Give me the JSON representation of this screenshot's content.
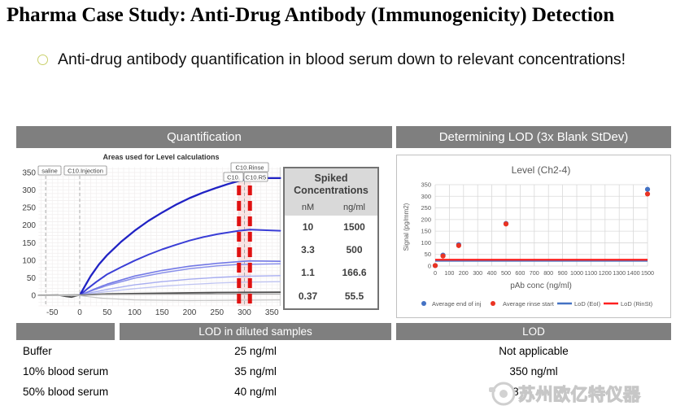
{
  "title": "Pharma Case Study: Anti-Drug Antibody (Immunogenicity) Detection",
  "bullet": {
    "text": "Anti-drug antibody quantification in blood serum down to relevant concentrations!"
  },
  "sections": {
    "quantification": "Quantification",
    "lod_determination": "Determining LOD (3x Blank StDev)",
    "lod_diluted": "LOD in diluted samples",
    "lod": "LOD"
  },
  "spiked_table": {
    "title": "Spiked Concentrations",
    "columns": [
      "nM",
      "ng/ml"
    ],
    "rows": [
      [
        "10",
        "1500"
      ],
      [
        "3.3",
        "500"
      ],
      [
        "1.1",
        "166.6"
      ],
      [
        "0.37",
        "55.5"
      ]
    ]
  },
  "lod_table": {
    "rows": [
      {
        "label": "Buffer",
        "diluted": "25 ng/ml",
        "lod": "Not applicable"
      },
      {
        "label": "10% blood serum",
        "diluted": "35 ng/ml",
        "lod": "350 ng/ml"
      },
      {
        "label": "50% blood serum",
        "diluted": "40 ng/ml",
        "lod": "80 ng/ml"
      }
    ]
  },
  "watermark": {
    "text": "苏州欧亿特仪器"
  },
  "chart_data": [
    {
      "type": "line",
      "title": "Areas used for Level calculations",
      "xlabel": "",
      "ylabel": "",
      "xlim": [
        -75,
        365
      ],
      "ylim": [
        -30,
        365
      ],
      "xticks": [
        -50,
        0,
        50,
        100,
        150,
        200,
        250,
        300,
        350
      ],
      "yticks": [
        0,
        50,
        100,
        150,
        200,
        250,
        300,
        350
      ],
      "annotations": [
        "saline",
        "C10.Injection",
        "C10.Rinse",
        "C10.",
        "C10.R5"
      ],
      "gray_dashed_x": [
        -62,
        0,
        300
      ],
      "red_dashed_x": [
        290,
        310
      ],
      "band_x": [
        288,
        312
      ],
      "series": [
        {
          "color": "#bfc4f2",
          "width": 1.3,
          "points": [
            [
              0,
              0
            ],
            [
              50,
              11
            ],
            [
              100,
              19
            ],
            [
              150,
              26
            ],
            [
              200,
              31
            ],
            [
              250,
              35
            ],
            [
              290,
              37
            ],
            [
              365,
              39
            ]
          ]
        },
        {
          "color": "#a7adf0",
          "width": 1.4,
          "points": [
            [
              0,
              0
            ],
            [
              25,
              9
            ],
            [
              50,
              17
            ],
            [
              100,
              30
            ],
            [
              150,
              39
            ],
            [
              200,
              46
            ],
            [
              250,
              51
            ],
            [
              290,
              54
            ],
            [
              365,
              56
            ]
          ]
        },
        {
          "color": "#8a90ea",
          "width": 1.5,
          "points": [
            [
              0,
              0
            ],
            [
              25,
              15
            ],
            [
              50,
              28
            ],
            [
              100,
              49
            ],
            [
              150,
              64
            ],
            [
              200,
              76
            ],
            [
              250,
              84
            ],
            [
              290,
              88
            ],
            [
              365,
              90
            ]
          ]
        },
        {
          "color": "#7379e6",
          "width": 1.6,
          "points": [
            [
              0,
              0
            ],
            [
              25,
              17
            ],
            [
              50,
              32
            ],
            [
              100,
              55
            ],
            [
              150,
              71
            ],
            [
              200,
              83
            ],
            [
              250,
              91
            ],
            [
              290,
              96
            ],
            [
              310,
              98
            ],
            [
              365,
              97
            ]
          ]
        },
        {
          "color": "#3a3ed6",
          "width": 2,
          "points": [
            [
              0,
              0
            ],
            [
              15,
              20
            ],
            [
              30,
              38
            ],
            [
              50,
              60
            ],
            [
              75,
              80
            ],
            [
              100,
              99
            ],
            [
              125,
              116
            ],
            [
              150,
              131
            ],
            [
              175,
              144
            ],
            [
              200,
              156
            ],
            [
              225,
              166
            ],
            [
              250,
              174
            ],
            [
              270,
              179
            ],
            [
              290,
              184
            ],
            [
              310,
              187
            ],
            [
              330,
              186
            ],
            [
              365,
              184
            ]
          ]
        },
        {
          "color": "#2022c4",
          "width": 2.3,
          "points": [
            [
              0,
              0
            ],
            [
              10,
              28
            ],
            [
              20,
              55
            ],
            [
              35,
              88
            ],
            [
              50,
              115
            ],
            [
              75,
              152
            ],
            [
              100,
              184
            ],
            [
              125,
              212
            ],
            [
              150,
              236
            ],
            [
              175,
              258
            ],
            [
              200,
              277
            ],
            [
              225,
              293
            ],
            [
              250,
              307
            ],
            [
              270,
              317
            ],
            [
              290,
              326
            ],
            [
              305,
              331
            ],
            [
              320,
              334
            ],
            [
              365,
              334
            ]
          ]
        },
        {
          "color": "#4d4d4d",
          "width": 1.8,
          "points": [
            [
              -75,
              0
            ],
            [
              -40,
              1
            ],
            [
              -25,
              -3
            ],
            [
              -15,
              -5
            ],
            [
              -8,
              -2
            ],
            [
              0,
              1
            ],
            [
              50,
              4
            ],
            [
              150,
              6
            ],
            [
              250,
              8
            ],
            [
              365,
              9
            ]
          ]
        },
        {
          "color": "#9a9a9a",
          "width": 1.2,
          "points": [
            [
              -75,
              0
            ],
            [
              0,
              2
            ],
            [
              100,
              3
            ],
            [
              250,
              4
            ],
            [
              365,
              4
            ]
          ]
        },
        {
          "color": "#c6c6c6",
          "width": 1.2,
          "points": [
            [
              -75,
              -1
            ],
            [
              0,
              -1
            ],
            [
              40,
              -8
            ],
            [
              100,
              -13
            ],
            [
              200,
              -15
            ],
            [
              300,
              -14
            ],
            [
              365,
              -13
            ]
          ]
        }
      ]
    },
    {
      "type": "scatter",
      "title": "Level (Ch2-4)",
      "xlabel": "pAb conc (ng/ml)",
      "ylabel": "Signal (pg/mm2)",
      "xlim": [
        0,
        1500
      ],
      "ylim": [
        0,
        350
      ],
      "xticks": [
        0,
        100,
        200,
        300,
        400,
        500,
        600,
        700,
        800,
        900,
        1000,
        1100,
        1200,
        1300,
        1400,
        1500
      ],
      "yticks": [
        0,
        50,
        100,
        150,
        200,
        250,
        300,
        350
      ],
      "series": [
        {
          "name": "Average end of inj",
          "color": "#4472c4",
          "points": [
            [
              0,
              2
            ],
            [
              55,
              47
            ],
            [
              166,
              92
            ],
            [
              500,
              183
            ],
            [
              1500,
              330
            ]
          ]
        },
        {
          "name": "Average rinse start",
          "color": "#ea3323",
          "points": [
            [
              0,
              2
            ],
            [
              55,
              43
            ],
            [
              166,
              88
            ],
            [
              500,
              181
            ],
            [
              1500,
              310
            ]
          ]
        }
      ],
      "ref_lines": [
        {
          "name": "LoD (EoI)",
          "color": "#4472c4",
          "y": 23
        },
        {
          "name": "LoD (RinSt)",
          "color": "#fe2020",
          "y": 27
        }
      ],
      "legend": [
        {
          "label": "Average end of inj",
          "color": "#4472c4",
          "type": "dot"
        },
        {
          "label": "Average rinse start",
          "color": "#ea3323",
          "type": "dot"
        },
        {
          "label": "LoD (EoI)",
          "color": "#4472c4",
          "type": "line"
        },
        {
          "label": "LoD (RinSt)",
          "color": "#fe2020",
          "type": "line"
        }
      ]
    }
  ]
}
